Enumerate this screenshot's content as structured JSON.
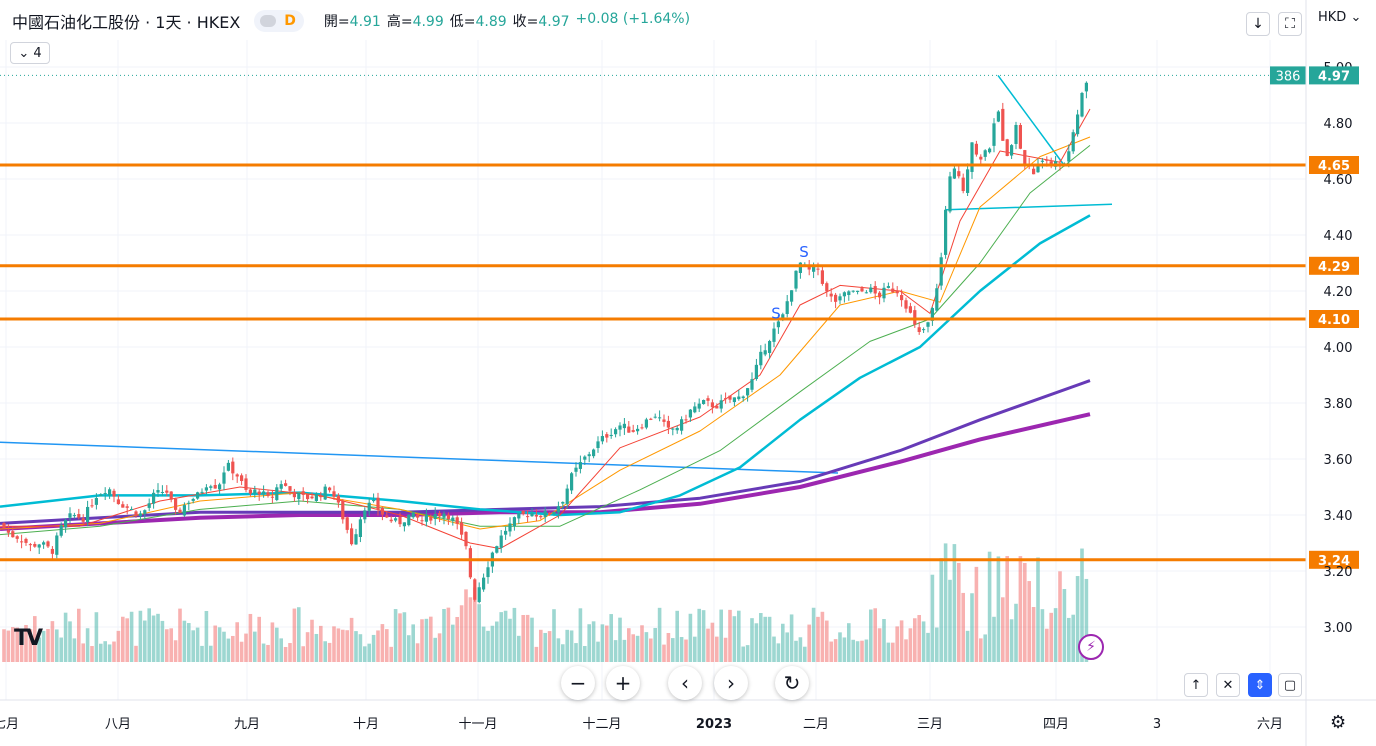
{
  "header": {
    "title": "中國石油化工股份 · 1天 · HKEX",
    "badge_letter": "D",
    "ohlc": [
      {
        "label": "開=",
        "value": "4.91"
      },
      {
        "label": "高=",
        "value": "4.99"
      },
      {
        "label": "低=",
        "value": "4.89"
      },
      {
        "label": "收=",
        "value": "4.97"
      },
      {
        "label": "",
        "value": "+0.08 (+1.64%)"
      }
    ],
    "indicators_count": "4"
  },
  "currency": "HKD",
  "toolbar_icons": [
    "download-icon",
    "fullscreen-icon"
  ],
  "bottom_controls": {
    "zoom_out": "−",
    "zoom_in": "+",
    "scroll_left": "‹",
    "scroll_right": "›",
    "reset": "↻",
    "right_buttons": [
      "↑",
      "✕",
      "⇕",
      "▢"
    ]
  },
  "chart_data": {
    "type": "candlestick",
    "y_axis": {
      "ticks": [
        "3.00",
        "3.20",
        "3.40",
        "3.60",
        "3.80",
        "4.00",
        "4.20",
        "4.40",
        "4.60",
        "4.80",
        "5.00"
      ],
      "ylim": [
        2.87,
        5.03
      ]
    },
    "x_axis": {
      "ticks": [
        "七月",
        "八月",
        "九月",
        "十月",
        "十一月",
        "十二月",
        "2023",
        "二月",
        "三月",
        "四月",
        "3",
        "六月"
      ]
    },
    "last_price": "4.97",
    "last_volume_label": "386",
    "horizontal_levels": [
      {
        "label": "4.65",
        "value": 4.65
      },
      {
        "label": "4.29",
        "value": 4.29
      },
      {
        "label": "4.10",
        "value": 4.1
      },
      {
        "label": "3.24",
        "value": 3.24
      }
    ],
    "markers": [
      {
        "text": "S",
        "price": 4.12
      },
      {
        "text": "S",
        "price": 4.34
      }
    ],
    "price_path": [
      [
        0,
        3.37
      ],
      [
        10,
        3.33
      ],
      [
        20,
        3.32
      ],
      [
        30,
        3.29
      ],
      [
        40,
        3.3
      ],
      [
        52,
        3.27
      ],
      [
        62,
        3.36
      ],
      [
        72,
        3.4
      ],
      [
        84,
        3.39
      ],
      [
        96,
        3.47
      ],
      [
        108,
        3.5
      ],
      [
        118,
        3.45
      ],
      [
        130,
        3.42
      ],
      [
        142,
        3.4
      ],
      [
        154,
        3.47
      ],
      [
        166,
        3.49
      ],
      [
        176,
        3.4
      ],
      [
        188,
        3.45
      ],
      [
        198,
        3.47
      ],
      [
        208,
        3.52
      ],
      [
        218,
        3.5
      ],
      [
        226,
        3.58
      ],
      [
        236,
        3.55
      ],
      [
        248,
        3.47
      ],
      [
        258,
        3.49
      ],
      [
        270,
        3.45
      ],
      [
        280,
        3.52
      ],
      [
        292,
        3.48
      ],
      [
        304,
        3.46
      ],
      [
        318,
        3.47
      ],
      [
        330,
        3.5
      ],
      [
        340,
        3.42
      ],
      [
        352,
        3.3
      ],
      [
        364,
        3.43
      ],
      [
        374,
        3.44
      ],
      [
        386,
        3.39
      ],
      [
        398,
        3.37
      ],
      [
        410,
        3.4
      ],
      [
        422,
        3.38
      ],
      [
        434,
        3.4
      ],
      [
        446,
        3.41
      ],
      [
        456,
        3.37
      ],
      [
        466,
        3.28
      ],
      [
        474,
        3.1
      ],
      [
        484,
        3.19
      ],
      [
        494,
        3.28
      ],
      [
        506,
        3.35
      ],
      [
        518,
        3.39
      ],
      [
        530,
        3.41
      ],
      [
        542,
        3.4
      ],
      [
        552,
        3.41
      ],
      [
        562,
        3.45
      ],
      [
        572,
        3.54
      ],
      [
        584,
        3.6
      ],
      [
        596,
        3.65
      ],
      [
        608,
        3.69
      ],
      [
        620,
        3.72
      ],
      [
        632,
        3.7
      ],
      [
        644,
        3.73
      ],
      [
        656,
        3.76
      ],
      [
        668,
        3.7
      ],
      [
        680,
        3.72
      ],
      [
        692,
        3.78
      ],
      [
        704,
        3.8
      ],
      [
        716,
        3.79
      ],
      [
        728,
        3.81
      ],
      [
        740,
        3.82
      ],
      [
        752,
        3.88
      ],
      [
        762,
        3.98
      ],
      [
        772,
        4.05
      ],
      [
        782,
        4.1
      ],
      [
        792,
        4.22
      ],
      [
        800,
        4.3
      ],
      [
        808,
        4.27
      ],
      [
        818,
        4.28
      ],
      [
        828,
        4.18
      ],
      [
        838,
        4.16
      ],
      [
        848,
        4.2
      ],
      [
        858,
        4.19
      ],
      [
        868,
        4.21
      ],
      [
        878,
        4.18
      ],
      [
        888,
        4.21
      ],
      [
        898,
        4.2
      ],
      [
        908,
        4.14
      ],
      [
        918,
        4.04
      ],
      [
        928,
        4.08
      ],
      [
        936,
        4.18
      ],
      [
        942,
        4.35
      ],
      [
        948,
        4.58
      ],
      [
        956,
        4.64
      ],
      [
        964,
        4.56
      ],
      [
        972,
        4.74
      ],
      [
        980,
        4.66
      ],
      [
        990,
        4.72
      ],
      [
        998,
        4.85
      ],
      [
        1006,
        4.68
      ],
      [
        1016,
        4.78
      ],
      [
        1024,
        4.66
      ],
      [
        1034,
        4.62
      ],
      [
        1044,
        4.68
      ],
      [
        1054,
        4.65
      ],
      [
        1064,
        4.66
      ],
      [
        1072,
        4.73
      ],
      [
        1080,
        4.88
      ],
      [
        1090,
        4.97
      ]
    ],
    "ma_short_path": [
      [
        0,
        3.36
      ],
      [
        80,
        3.36
      ],
      [
        160,
        3.45
      ],
      [
        240,
        3.5
      ],
      [
        320,
        3.47
      ],
      [
        400,
        3.4
      ],
      [
        470,
        3.3
      ],
      [
        500,
        3.28
      ],
      [
        560,
        3.4
      ],
      [
        620,
        3.64
      ],
      [
        700,
        3.75
      ],
      [
        760,
        3.9
      ],
      [
        800,
        4.15
      ],
      [
        840,
        4.22
      ],
      [
        900,
        4.2
      ],
      [
        930,
        4.12
      ],
      [
        960,
        4.45
      ],
      [
        1000,
        4.7
      ],
      [
        1060,
        4.66
      ],
      [
        1090,
        4.85
      ]
    ],
    "ma_mid_path": [
      [
        0,
        3.35
      ],
      [
        100,
        3.37
      ],
      [
        200,
        3.45
      ],
      [
        300,
        3.48
      ],
      [
        400,
        3.42
      ],
      [
        480,
        3.35
      ],
      [
        540,
        3.38
      ],
      [
        620,
        3.56
      ],
      [
        700,
        3.7
      ],
      [
        780,
        3.9
      ],
      [
        840,
        4.15
      ],
      [
        900,
        4.2
      ],
      [
        940,
        4.16
      ],
      [
        980,
        4.5
      ],
      [
        1040,
        4.68
      ],
      [
        1090,
        4.75
      ]
    ],
    "ma_long_path": [
      [
        0,
        3.33
      ],
      [
        100,
        3.36
      ],
      [
        200,
        3.42
      ],
      [
        300,
        3.45
      ],
      [
        400,
        3.42
      ],
      [
        480,
        3.36
      ],
      [
        560,
        3.36
      ],
      [
        640,
        3.49
      ],
      [
        720,
        3.63
      ],
      [
        800,
        3.84
      ],
      [
        870,
        4.02
      ],
      [
        930,
        4.1
      ],
      [
        980,
        4.3
      ],
      [
        1030,
        4.55
      ],
      [
        1090,
        4.72
      ]
    ],
    "ma_teal_path": [
      [
        0,
        3.43
      ],
      [
        100,
        3.47
      ],
      [
        200,
        3.47
      ],
      [
        300,
        3.48
      ],
      [
        400,
        3.45
      ],
      [
        480,
        3.42
      ],
      [
        560,
        3.4
      ],
      [
        620,
        3.41
      ],
      [
        680,
        3.47
      ],
      [
        740,
        3.57
      ],
      [
        800,
        3.74
      ],
      [
        860,
        3.89
      ],
      [
        920,
        4.0
      ],
      [
        980,
        4.2
      ],
      [
        1040,
        4.37
      ],
      [
        1090,
        4.47
      ]
    ],
    "ma_purple_path": [
      [
        0,
        3.37
      ],
      [
        100,
        3.39
      ],
      [
        200,
        3.41
      ],
      [
        300,
        3.41
      ],
      [
        400,
        3.41
      ],
      [
        500,
        3.42
      ],
      [
        600,
        3.43
      ],
      [
        700,
        3.46
      ],
      [
        800,
        3.52
      ],
      [
        900,
        3.63
      ],
      [
        980,
        3.74
      ],
      [
        1090,
        3.88
      ]
    ],
    "ma_magenta_path": [
      [
        0,
        3.35
      ],
      [
        100,
        3.37
      ],
      [
        200,
        3.39
      ],
      [
        300,
        3.4
      ],
      [
        400,
        3.4
      ],
      [
        500,
        3.41
      ],
      [
        600,
        3.41
      ],
      [
        700,
        3.44
      ],
      [
        800,
        3.5
      ],
      [
        900,
        3.59
      ],
      [
        980,
        3.67
      ],
      [
        1090,
        3.76
      ]
    ],
    "trendlines": [
      {
        "from": [
          0,
          3.66
        ],
        "to": [
          838,
          3.55
        ],
        "color": "#2196f3"
      },
      {
        "from": [
          998,
          4.97
        ],
        "to": [
          1064,
          4.65
        ],
        "color": "#00bcd4"
      },
      {
        "from": [
          946,
          4.49
        ],
        "to": [
          1112,
          4.51
        ],
        "color": "#00bcd4"
      }
    ]
  }
}
